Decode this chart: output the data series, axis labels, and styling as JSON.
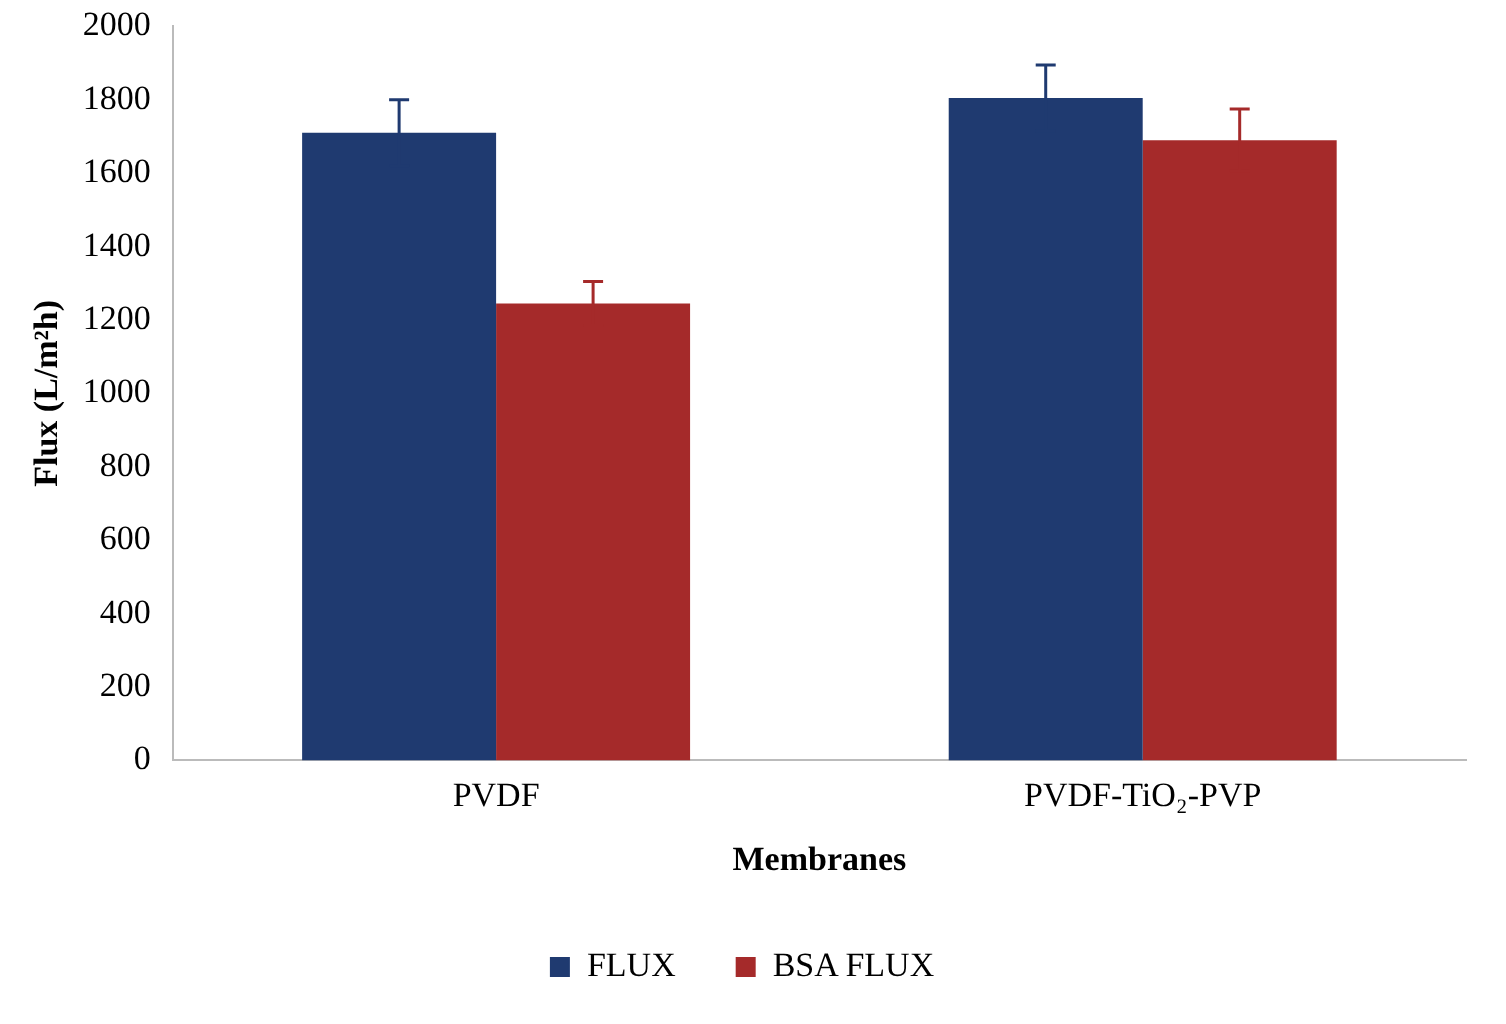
{
  "chart_data": {
    "type": "bar",
    "xlabel": "Membranes",
    "ylabel": "Flux (L/m²h)",
    "categories": [
      "PVDF",
      "PVDF-TiO₂-PVP"
    ],
    "series": [
      {
        "name": "FLUX",
        "color": "#1f3a70",
        "values": [
          1710,
          1805
        ],
        "errors": [
          90,
          90
        ]
      },
      {
        "name": "BSA FLUX",
        "color": "#a52a2a",
        "values": [
          1245,
          1690
        ],
        "errors": [
          60,
          85
        ]
      }
    ],
    "ylim": [
      0,
      2000
    ],
    "yticks": [
      0,
      200,
      400,
      600,
      800,
      1000,
      1200,
      1400,
      1600,
      1800,
      2000
    ],
    "grid": false,
    "legend": "bottom"
  }
}
